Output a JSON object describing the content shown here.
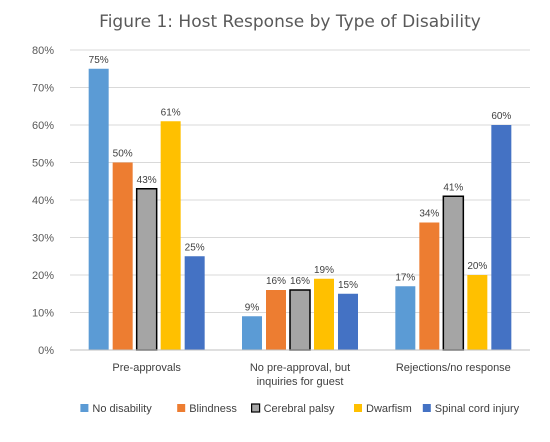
{
  "chart_data": {
    "type": "bar",
    "title": "Figure 1:  Host Response by Type of Disability",
    "categories": [
      [
        "Pre-approvals"
      ],
      [
        "No pre-approval, but",
        "inquiries for guest"
      ],
      [
        "Rejections/no response"
      ]
    ],
    "ylim": [
      0,
      80
    ],
    "yticks": [
      0,
      10,
      20,
      30,
      40,
      50,
      60,
      70,
      80
    ],
    "ytick_labels": [
      "0%",
      "10%",
      "20%",
      "30%",
      "40%",
      "50%",
      "60%",
      "70%",
      "80%"
    ],
    "grid": true,
    "legend_position": "bottom",
    "series": [
      {
        "name": "No disability",
        "color": "#5b9bd5",
        "outline": false,
        "values": [
          75,
          9,
          17
        ],
        "labels": [
          "75%",
          "9%",
          "17%"
        ]
      },
      {
        "name": "Blindness",
        "color": "#ed7d31",
        "outline": false,
        "values": [
          50,
          16,
          34
        ],
        "labels": [
          "50%",
          "16%",
          "34%"
        ]
      },
      {
        "name": "Cerebral palsy",
        "color": "#a5a5a5",
        "outline": true,
        "values": [
          43,
          16,
          41
        ],
        "labels": [
          "43%",
          "16%",
          "41%"
        ]
      },
      {
        "name": "Dwarfism",
        "color": "#ffc000",
        "outline": false,
        "values": [
          61,
          19,
          20
        ],
        "labels": [
          "61%",
          "19%",
          "20%"
        ]
      },
      {
        "name": "Spinal cord injury",
        "color": "#4472c4",
        "outline": false,
        "values": [
          25,
          15,
          60
        ],
        "labels": [
          "25%",
          "15%",
          "60%"
        ]
      }
    ]
  }
}
